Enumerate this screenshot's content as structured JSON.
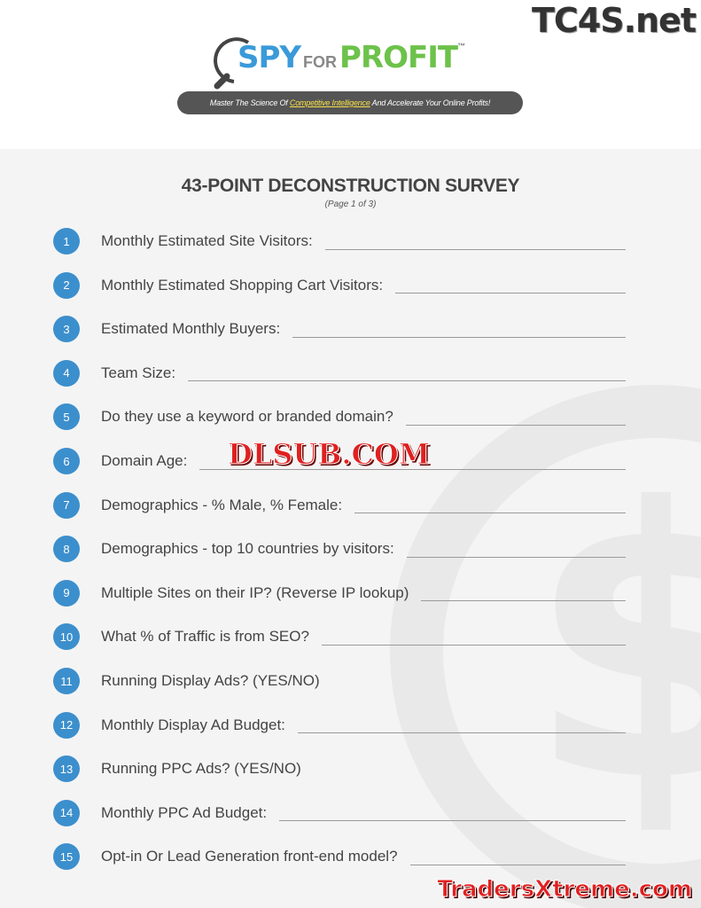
{
  "header": {
    "logo": {
      "spy": "SPY",
      "for": "FOR",
      "profit": "PROFIT",
      "tm": "™"
    },
    "tagline": {
      "before": "Master The Science Of ",
      "highlight": "Competitive Intelligence",
      "after": " And Accelerate Your Online Profits!"
    },
    "colors": {
      "spy": "#3a9ad9",
      "profit": "#6cc24a",
      "tagline_bg": "#555555"
    }
  },
  "survey": {
    "title": "43-POINT DECONSTRUCTION SURVEY",
    "subtitle": "(Page 1 of 3)",
    "accent": "#3c8fcd",
    "items": [
      {
        "n": "1",
        "q": "Monthly Estimated Site Visitors:",
        "blank": true
      },
      {
        "n": "2",
        "q": "Monthly Estimated Shopping Cart Visitors:",
        "blank": true
      },
      {
        "n": "3",
        "q": "Estimated Monthly Buyers:",
        "blank": true
      },
      {
        "n": "4",
        "q": "Team Size:",
        "blank": true
      },
      {
        "n": "5",
        "q": "Do they use a keyword or branded domain?",
        "blank": true
      },
      {
        "n": "6",
        "q": "Domain Age:",
        "blank": true
      },
      {
        "n": "7",
        "q": "Demographics - % Male, % Female:",
        "blank": true
      },
      {
        "n": "8",
        "q": "Demographics - top 10 countries by visitors:",
        "blank": true
      },
      {
        "n": "9",
        "q": "Multiple Sites on their IP? (Reverse IP lookup)",
        "blank": true
      },
      {
        "n": "10",
        "q": "What % of Traffic is from SEO?",
        "blank": true
      },
      {
        "n": "11",
        "q": "Running Display Ads? (YES/NO)",
        "blank": false
      },
      {
        "n": "12",
        "q": "Monthly Display Ad Budget:",
        "blank": true
      },
      {
        "n": "13",
        "q": "Running PPC Ads? (YES/NO)",
        "blank": false
      },
      {
        "n": "14",
        "q": "Monthly PPC Ad Budget:",
        "blank": true
      },
      {
        "n": "15",
        "q": "Opt-in Or Lead Generation front-end model?",
        "blank": true
      }
    ]
  },
  "watermarks": {
    "top": "TC4S.net",
    "middle": "DLSUB.COM",
    "bottom": "TradersXtreme.com"
  }
}
